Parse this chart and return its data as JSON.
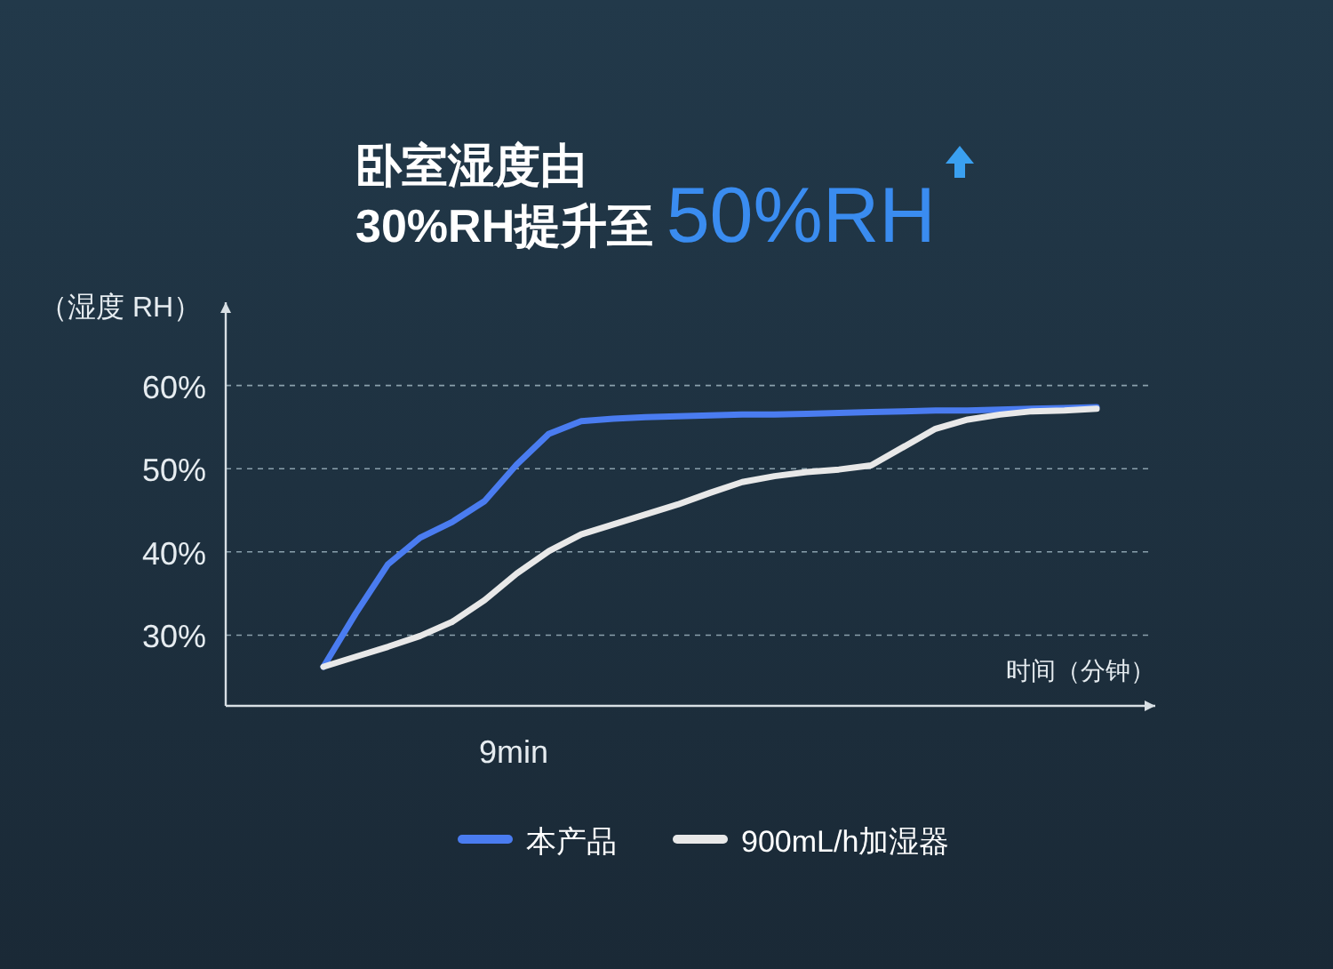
{
  "chart_data": {
    "type": "line",
    "title": "卧室湿度由",
    "subtitle": "30%RH提升至 50%RH",
    "ylabel": "（湿度 RH）",
    "xlabel": "时间（分钟）",
    "ylim": [
      21.5,
      70
    ],
    "yticks": [
      {
        "value": 30,
        "label": "30%"
      },
      {
        "value": 40,
        "label": "40%"
      },
      {
        "value": 50,
        "label": "50%"
      },
      {
        "value": 60,
        "label": "60%"
      }
    ],
    "categories": [
      null,
      null,
      null,
      null,
      null,
      null,
      null,
      null,
      null,
      null,
      null,
      null,
      null,
      null,
      null,
      null,
      null,
      null,
      null,
      null,
      null,
      null,
      null,
      null,
      null
    ],
    "annotations": [
      "9min"
    ],
    "grid": "y",
    "legend": "bottom",
    "series": [
      {
        "name": "本产品",
        "color": "#4a7cf0",
        "values": [
          26.2,
          32.6,
          38.5,
          41.7,
          43.6,
          46.1,
          50.5,
          54.2,
          55.7,
          56.0,
          56.2,
          56.3,
          56.4,
          56.5,
          56.5,
          56.6,
          56.7,
          56.8,
          56.9,
          57.0,
          57.0,
          57.1,
          57.2,
          57.3,
          57.4
        ]
      },
      {
        "name": "900mL/h加湿器",
        "color": "#e8e8e8",
        "values": [
          26.2,
          27.4,
          28.6,
          29.9,
          31.6,
          34.2,
          37.4,
          40.1,
          42.1,
          43.3,
          44.5,
          45.7,
          47.1,
          48.4,
          49.1,
          49.6,
          49.9,
          50.4,
          52.6,
          54.8,
          55.9,
          56.5,
          56.9,
          57.0,
          57.2
        ]
      }
    ]
  }
}
